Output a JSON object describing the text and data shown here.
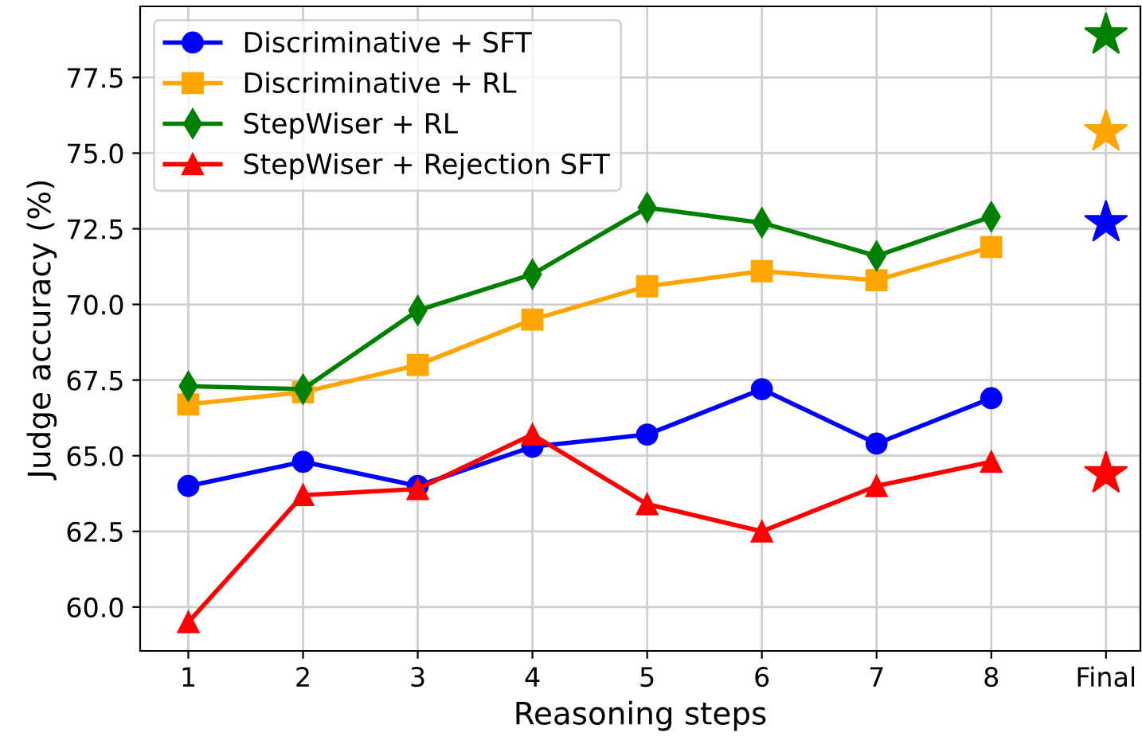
{
  "chart_data": {
    "type": "line",
    "xlabel": "Reasoning steps",
    "ylabel": "Judge accuracy (%)",
    "categories": [
      "1",
      "2",
      "3",
      "4",
      "5",
      "6",
      "7",
      "8",
      "Final"
    ],
    "ylim": [
      58.55,
      79.85
    ],
    "yticks": [
      {
        "value": 60,
        "label": "60.0"
      },
      {
        "value": 62.5,
        "label": "62.5"
      },
      {
        "value": 65,
        "label": "65.0"
      },
      {
        "value": 67.5,
        "label": "67.5"
      },
      {
        "value": 70,
        "label": "70.0"
      },
      {
        "value": 72.5,
        "label": "72.5"
      },
      {
        "value": 75,
        "label": "75.0"
      },
      {
        "value": 77.5,
        "label": "77.5"
      }
    ],
    "grid": true,
    "legend": "top left",
    "series": [
      {
        "name": "Discriminative + SFT",
        "color": "#0000ff",
        "marker": "circle",
        "values": [
          64.0,
          64.8,
          64.0,
          65.3,
          65.7,
          67.2,
          65.4,
          66.9,
          null
        ]
      },
      {
        "name": "Discriminative + RL",
        "color": "#ffa500",
        "marker": "square",
        "values": [
          66.7,
          67.1,
          68.0,
          69.5,
          70.6,
          71.1,
          70.8,
          71.9,
          null
        ]
      },
      {
        "name": "StepWiser + RL",
        "color": "#008000",
        "marker": "diamond",
        "values": [
          67.3,
          67.2,
          69.8,
          71.0,
          73.2,
          72.7,
          71.6,
          72.9,
          null
        ]
      },
      {
        "name": "StepWiser + Rejection SFT",
        "color": "#ff0000",
        "marker": "triangle",
        "values": [
          59.5,
          63.7,
          63.9,
          65.7,
          63.4,
          62.5,
          64.0,
          64.8,
          null
        ]
      },
      {
        "type": "scatter",
        "color": "#0000ff",
        "marker": "star",
        "values": [
          null,
          null,
          null,
          null,
          null,
          null,
          null,
          null,
          72.7
        ]
      },
      {
        "type": "scatter",
        "color": "#ffa500",
        "marker": "star",
        "values": [
          null,
          null,
          null,
          null,
          null,
          null,
          null,
          null,
          75.7
        ]
      },
      {
        "type": "scatter",
        "color": "#008000",
        "marker": "star",
        "values": [
          null,
          null,
          null,
          null,
          null,
          null,
          null,
          null,
          78.9
        ]
      },
      {
        "type": "scatter",
        "color": "#ff0000",
        "marker": "star",
        "values": [
          null,
          null,
          null,
          null,
          null,
          null,
          null,
          null,
          64.4
        ]
      }
    ]
  }
}
